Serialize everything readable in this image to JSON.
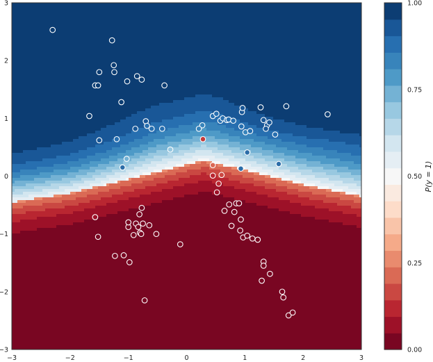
{
  "chart_data": {
    "type": "heatmap",
    "title": "",
    "xlabel": "",
    "ylabel": "",
    "xlim": [
      -3,
      3
    ],
    "ylim": [
      -3,
      3
    ],
    "x_ticks": [
      "−3",
      "−2",
      "−1",
      "0",
      "1",
      "2",
      "3"
    ],
    "y_ticks": [
      "−3",
      "−2",
      "−1",
      "0",
      "1",
      "2",
      "3"
    ],
    "grid": false,
    "colormap": {
      "name": "RdBu",
      "low_color": "#67001f",
      "mid_color": "#f7f7f7",
      "high_color": "#053061",
      "levels": 21
    },
    "colorbar": {
      "label": "P(y = 1)",
      "range": [
        0,
        1
      ],
      "ticks": [
        "0.00",
        "0.25",
        "0.50",
        "0.75",
        "1.00"
      ]
    },
    "decision_boundary": {
      "description_values": "P = 0.5 contour",
      "x": [
        -3,
        -2,
        -1,
        0,
        0.3,
        1,
        2,
        3
      ],
      "y": [
        -0.45,
        -0.3,
        -0.05,
        0.2,
        0.27,
        0.1,
        -0.15,
        -0.35
      ]
    },
    "points_class_1": [
      [
        -2.3,
        2.53
      ],
      [
        -1.28,
        2.35
      ],
      [
        -1.25,
        1.92
      ],
      [
        -1.24,
        1.8
      ],
      [
        -1.5,
        1.8
      ],
      [
        -1.57,
        1.57
      ],
      [
        -1.52,
        1.57
      ],
      [
        -0.85,
        1.73
      ],
      [
        -0.77,
        1.67
      ],
      [
        -1.02,
        1.64
      ],
      [
        -0.38,
        1.57
      ],
      [
        -1.12,
        1.28
      ],
      [
        -1.67,
        1.04
      ],
      [
        -0.7,
        0.95
      ],
      [
        -0.68,
        0.87
      ],
      [
        -0.6,
        0.82
      ],
      [
        -0.42,
        0.82
      ],
      [
        -0.88,
        0.82
      ],
      [
        -1.5,
        0.62
      ],
      [
        -1.2,
        0.64
      ],
      [
        -0.28,
        0.46
      ],
      [
        -1.03,
        0.3
      ],
      [
        -1.1,
        0.15
      ],
      [
        0.27,
        0.88
      ],
      [
        0.21,
        0.82
      ],
      [
        0.45,
        1.04
      ],
      [
        0.51,
        1.08
      ],
      [
        0.58,
        0.96
      ],
      [
        0.62,
        1.0
      ],
      [
        0.69,
        0.97
      ],
      [
        0.72,
        0.98
      ],
      [
        0.8,
        0.96
      ],
      [
        0.95,
        1.11
      ],
      [
        0.96,
        1.18
      ],
      [
        0.94,
        0.86
      ],
      [
        1.01,
        0.76
      ],
      [
        1.09,
        0.78
      ],
      [
        1.27,
        1.19
      ],
      [
        1.32,
        0.97
      ],
      [
        1.38,
        0.88
      ],
      [
        1.42,
        0.93
      ],
      [
        1.36,
        0.82
      ],
      [
        1.52,
        0.72
      ],
      [
        1.71,
        1.21
      ],
      [
        2.42,
        1.07
      ],
      [
        1.04,
        0.41
      ],
      [
        0.93,
        0.13
      ],
      [
        1.58,
        0.21
      ],
      [
        -0.11,
        -1.18
      ]
    ],
    "points_class_0": [
      [
        -1.57,
        -0.71
      ],
      [
        -1.52,
        -1.05
      ],
      [
        -1.23,
        -1.38
      ],
      [
        -1.08,
        -1.37
      ],
      [
        -1.0,
        -0.88
      ],
      [
        -1.0,
        -0.8
      ],
      [
        -0.98,
        -1.49
      ],
      [
        -0.91,
        -1.02
      ],
      [
        -0.87,
        -0.82
      ],
      [
        -0.83,
        -0.88
      ],
      [
        -0.8,
        -0.98
      ],
      [
        -0.81,
        -0.66
      ],
      [
        -0.78,
        -1.0
      ],
      [
        -0.77,
        -0.55
      ],
      [
        -0.75,
        -0.82
      ],
      [
        -0.72,
        -2.15
      ],
      [
        -0.64,
        -0.85
      ],
      [
        -0.52,
        -1.0
      ],
      [
        0.28,
        0.64
      ],
      [
        0.45,
        0.19
      ],
      [
        0.45,
        0.01
      ],
      [
        0.52,
        -0.28
      ],
      [
        0.55,
        -0.13
      ],
      [
        0.6,
        0.02
      ],
      [
        0.65,
        -0.6
      ],
      [
        0.73,
        -0.49
      ],
      [
        0.77,
        -0.86
      ],
      [
        0.82,
        -0.62
      ],
      [
        0.85,
        -0.47
      ],
      [
        0.9,
        -0.47
      ],
      [
        0.92,
        -0.94
      ],
      [
        0.93,
        -0.75
      ],
      [
        0.97,
        -1.06
      ],
      [
        1.04,
        -1.03
      ],
      [
        1.13,
        -1.08
      ],
      [
        1.22,
        -1.1
      ],
      [
        1.32,
        -1.48
      ],
      [
        1.32,
        -1.55
      ],
      [
        1.29,
        -1.81
      ],
      [
        1.43,
        -1.69
      ],
      [
        1.64,
        -2.0
      ],
      [
        1.66,
        -2.1
      ],
      [
        1.75,
        -2.41
      ],
      [
        1.82,
        -2.36
      ]
    ],
    "point_colors": {
      "class_1": "#2c6da8",
      "class_0": "#c43a3a",
      "edge": "#ffffff"
    }
  }
}
